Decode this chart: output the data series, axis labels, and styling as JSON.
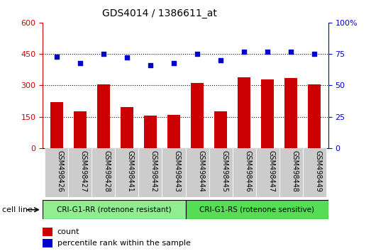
{
  "title": "GDS4014 / 1386611_at",
  "categories": [
    "GSM498426",
    "GSM498427",
    "GSM498428",
    "GSM498441",
    "GSM498442",
    "GSM498443",
    "GSM498444",
    "GSM498445",
    "GSM498446",
    "GSM498447",
    "GSM498448",
    "GSM498449"
  ],
  "counts": [
    220,
    175,
    305,
    195,
    155,
    160,
    310,
    175,
    340,
    330,
    335,
    305
  ],
  "percentile_ranks": [
    73,
    68,
    75,
    72,
    66,
    68,
    75,
    70,
    77,
    77,
    77,
    75
  ],
  "bar_color": "#cc0000",
  "dot_color": "#0000cc",
  "left_ylim": [
    0,
    600
  ],
  "right_ylim": [
    0,
    100
  ],
  "left_yticks": [
    0,
    150,
    300,
    450,
    600
  ],
  "right_yticks": [
    0,
    25,
    50,
    75,
    100
  ],
  "left_ytick_labels": [
    "0",
    "150",
    "300",
    "450",
    "600"
  ],
  "right_ytick_labels": [
    "0",
    "25",
    "50",
    "75",
    "100%"
  ],
  "grid_lines": [
    150,
    300,
    450
  ],
  "group1_label": "CRI-G1-RR (rotenone resistant)",
  "group2_label": "CRI-G1-RS (rotenone sensitive)",
  "group1_color": "#90ee90",
  "group2_color": "#55dd55",
  "cell_line_label": "cell line",
  "legend_count_label": "count",
  "legend_percentile_label": "percentile rank within the sample",
  "n_group1": 6,
  "n_group2": 6,
  "bar_width": 0.55,
  "tick_label_rotation": 270,
  "background_color": "#ffffff",
  "plot_bg_color": "#ffffff",
  "tick_area_color": "#cccccc"
}
